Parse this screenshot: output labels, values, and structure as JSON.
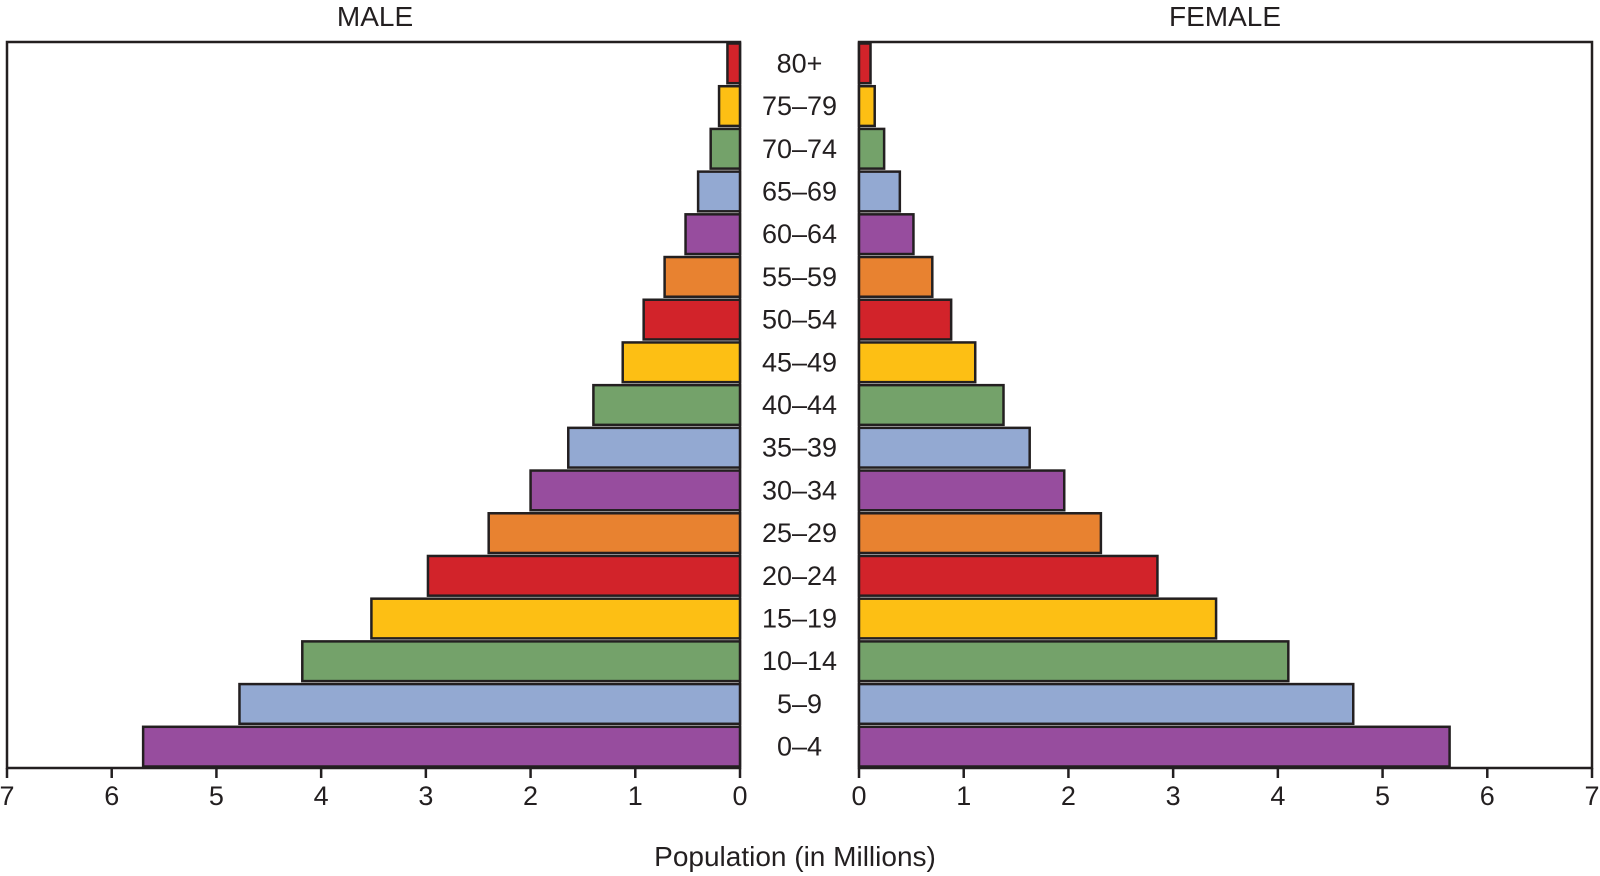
{
  "chart_data": {
    "type": "bar",
    "orientation": "horizontal",
    "layout": "population-pyramid",
    "xlabel": "Population (in Millions)",
    "xlim": [
      0,
      7
    ],
    "xticks": [
      0,
      1,
      2,
      3,
      4,
      5,
      6,
      7
    ],
    "categories": [
      "80+",
      "75–79",
      "70–74",
      "65–69",
      "60–64",
      "55–59",
      "50–54",
      "45–49",
      "40–44",
      "35–39",
      "30–34",
      "25–29",
      "20–24",
      "15–19",
      "10–14",
      "5–9",
      "0–4"
    ],
    "series": [
      {
        "name": "MALE",
        "values": [
          0.12,
          0.2,
          0.28,
          0.4,
          0.52,
          0.72,
          0.92,
          1.12,
          1.4,
          1.64,
          2.0,
          2.4,
          2.98,
          3.52,
          4.18,
          4.78,
          5.7
        ]
      },
      {
        "name": "FEMALE",
        "values": [
          0.11,
          0.15,
          0.24,
          0.39,
          0.52,
          0.7,
          0.88,
          1.11,
          1.38,
          1.63,
          1.96,
          2.31,
          2.85,
          3.41,
          4.1,
          4.72,
          5.64
        ]
      }
    ],
    "bar_colors": [
      "#d2232a",
      "#fdbf14",
      "#74a26a",
      "#93a9d2",
      "#974d9e",
      "#e88230",
      "#d2232a",
      "#fdbf14",
      "#74a26a",
      "#93a9d2",
      "#974d9e",
      "#e88230",
      "#d2232a",
      "#fdbf14",
      "#74a26a",
      "#93a9d2",
      "#974d9e"
    ],
    "grid": false,
    "legend": "none"
  }
}
